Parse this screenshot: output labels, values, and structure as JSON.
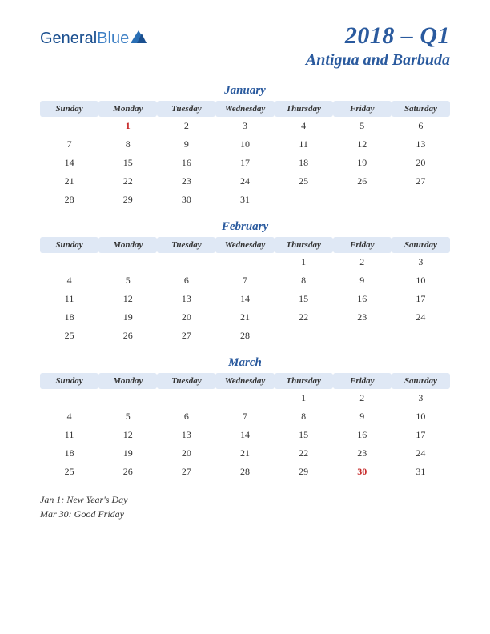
{
  "logo": {
    "part1": "General",
    "part2": "Blue"
  },
  "title": {
    "main": "2018 – Q1",
    "sub": "Antigua and Barbuda"
  },
  "weekdays": [
    "Sunday",
    "Monday",
    "Tuesday",
    "Wednesday",
    "Thursday",
    "Friday",
    "Saturday"
  ],
  "colors": {
    "brand_primary": "#2a5a9e",
    "header_bg": "#dfe8f5",
    "holiday": "#c62828",
    "text": "#333333",
    "background": "#ffffff"
  },
  "typography": {
    "title_main_fontsize": 30,
    "title_sub_fontsize": 20,
    "month_name_fontsize": 15,
    "weekday_fontsize": 11,
    "day_fontsize": 12,
    "holiday_list_fontsize": 12
  },
  "months": [
    {
      "name": "January",
      "weeks": [
        [
          "",
          "1",
          "2",
          "3",
          "4",
          "5",
          "6"
        ],
        [
          "7",
          "8",
          "9",
          "10",
          "11",
          "12",
          "13"
        ],
        [
          "14",
          "15",
          "16",
          "17",
          "18",
          "19",
          "20"
        ],
        [
          "21",
          "22",
          "23",
          "24",
          "25",
          "26",
          "27"
        ],
        [
          "28",
          "29",
          "30",
          "31",
          "",
          "",
          ""
        ]
      ],
      "holiday_cells": [
        [
          0,
          1
        ]
      ]
    },
    {
      "name": "February",
      "weeks": [
        [
          "",
          "",
          "",
          "",
          "1",
          "2",
          "3"
        ],
        [
          "4",
          "5",
          "6",
          "7",
          "8",
          "9",
          "10"
        ],
        [
          "11",
          "12",
          "13",
          "14",
          "15",
          "16",
          "17"
        ],
        [
          "18",
          "19",
          "20",
          "21",
          "22",
          "23",
          "24"
        ],
        [
          "25",
          "26",
          "27",
          "28",
          "",
          "",
          ""
        ]
      ],
      "holiday_cells": []
    },
    {
      "name": "March",
      "weeks": [
        [
          "",
          "",
          "",
          "",
          "1",
          "2",
          "3"
        ],
        [
          "4",
          "5",
          "6",
          "7",
          "8",
          "9",
          "10"
        ],
        [
          "11",
          "12",
          "13",
          "14",
          "15",
          "16",
          "17"
        ],
        [
          "18",
          "19",
          "20",
          "21",
          "22",
          "23",
          "24"
        ],
        [
          "25",
          "26",
          "27",
          "28",
          "29",
          "30",
          "31"
        ]
      ],
      "holiday_cells": [
        [
          4,
          5
        ]
      ]
    }
  ],
  "holiday_list": [
    "Jan 1: New Year's Day",
    "Mar 30: Good Friday"
  ]
}
